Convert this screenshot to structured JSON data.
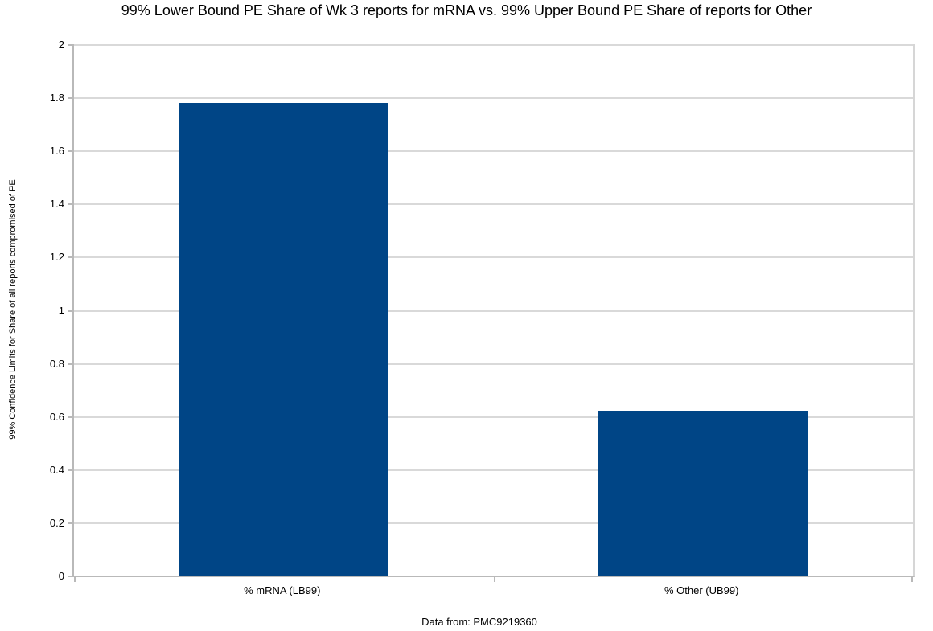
{
  "title": "99% Lower Bound PE Share of Wk 3 reports for mRNA vs. 99% Upper Bound PE Share of reports for Other",
  "footer": "Data from: PMC9219360",
  "colors": {
    "bar": "#004586",
    "gridline": "#d9d9d9",
    "axis": "#b9b9b9",
    "text": "#000000",
    "background": "#ffffff"
  },
  "chart_data": {
    "type": "bar",
    "title": "99% Lower Bound PE Share of Wk 3 reports for mRNA vs. 99% Upper Bound PE Share of reports for Other",
    "categories": [
      "% mRNA (LB99)",
      "% Other (UB99)"
    ],
    "values": [
      1.78,
      0.62
    ],
    "xlabel": "",
    "ylabel": "99% Confidence Limits for Share of all reports compromised of PE",
    "ylim": [
      0,
      2
    ],
    "ytick_step": 0.2,
    "ytick_labels": [
      "0",
      "0.2",
      "0.4",
      "0.6",
      "0.8",
      "1",
      "1.2",
      "1.4",
      "1.6",
      "1.8",
      "2"
    ],
    "grid": true,
    "legend_position": "none",
    "bar_color": "#004586",
    "annotation": "Data from: PMC9219360"
  }
}
